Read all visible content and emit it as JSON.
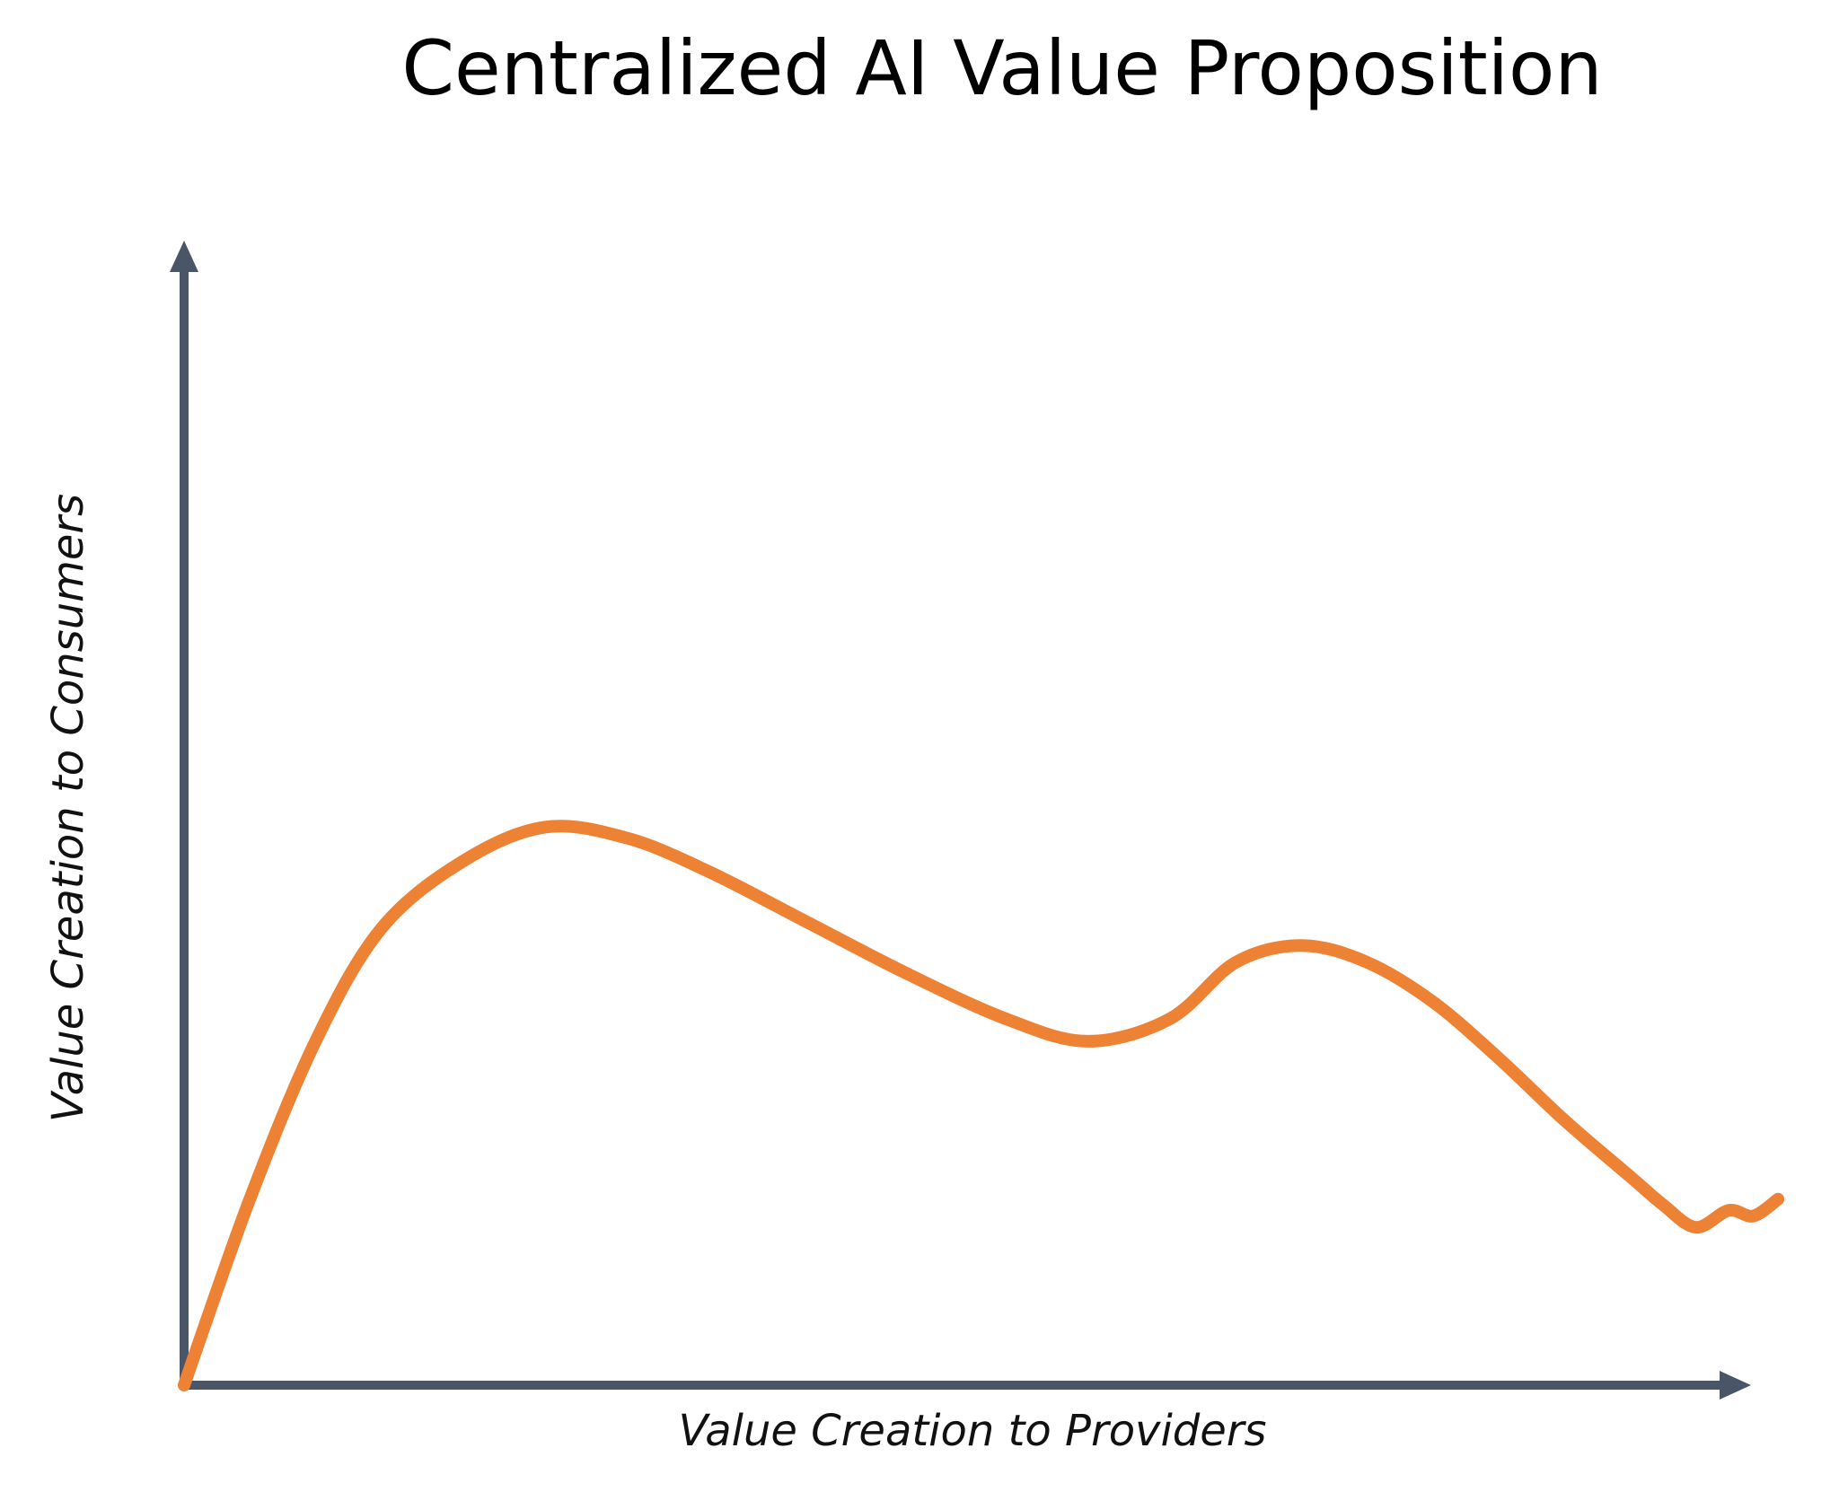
{
  "chart_data": {
    "type": "line",
    "title": "Centralized AI Value Proposition",
    "xlabel": "Value Creation to Providers",
    "ylabel": "Value Creation to Consumers",
    "xlim": [
      0,
      100
    ],
    "ylim": [
      0,
      100
    ],
    "grid": false,
    "legend": "none",
    "series": [
      {
        "x": [
          0,
          4,
          8,
          12,
          17,
          22,
          27,
          32,
          38,
          44,
          50,
          55,
          60,
          64,
          68,
          72,
          76,
          80,
          84,
          88,
          90,
          92,
          94,
          95.5,
          97
        ],
        "values": [
          0,
          16.5,
          30.5,
          40.5,
          46.5,
          49.5,
          48.5,
          45.5,
          41,
          36.5,
          32.5,
          30.5,
          32.5,
          37.5,
          39,
          37.5,
          34,
          29,
          23.5,
          18.5,
          16,
          14,
          15.5,
          15,
          16.5
        ]
      }
    ],
    "colors": {
      "line": "#ED8134",
      "axis": "#4A5568"
    }
  }
}
